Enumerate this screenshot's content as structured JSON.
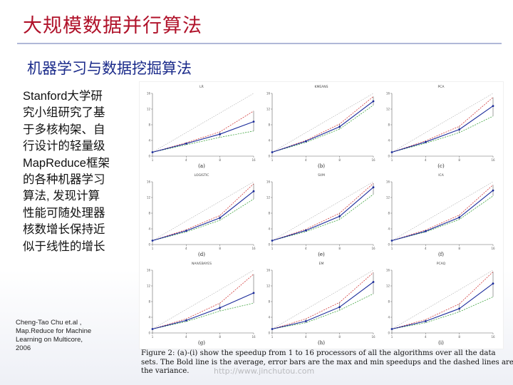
{
  "slide": {
    "title": "大规模数据并行算法",
    "subtitle": "机器学习与数据挖掘算法",
    "body_lines": [
      "Stanford大学研",
      "究小组研究了基",
      "于多核构架、自",
      "行设计的轻量级",
      "MapReduce框架",
      "的各种机器学习",
      "算法, 发现计算",
      "性能可随处理器",
      "核数增长保持近",
      "似于线性的增长"
    ],
    "citation_lines": [
      "Cheng-Tao Chu et.al ,",
      "Map.Reduce for Machine",
      "Learning on Multicore,",
      "2006"
    ],
    "caption_lines": [
      "Figure 2: (a)-(i) show the speedup from 1 to 16 processors of all the algorithms over all the data",
      "sets. The Bold line is the average, error bars are the max and min speedups and the dashed lines are",
      "the variance."
    ],
    "watermark": "http://www.jinchutou.com"
  },
  "colors": {
    "title": "#b0122a",
    "subtitle": "#1a2a8a",
    "avg_line": "#1a2a9a",
    "max_line": "#cc2222",
    "min_line": "#2a9a2a",
    "variance_line": "#888888"
  },
  "chart_data": [
    {
      "type": "line",
      "name": "LR",
      "label": "(a)",
      "x": [
        1,
        4,
        8,
        16
      ],
      "series": [
        {
          "values": [
            1,
            3.2,
            5.6,
            8.8
          ]
        },
        {
          "values": [
            1,
            3.4,
            6.2,
            11.5
          ]
        },
        {
          "values": [
            1,
            2.9,
            4.8,
            6.4
          ]
        }
      ],
      "ylim": [
        0,
        16
      ]
    },
    {
      "type": "line",
      "name": "KMEANS",
      "label": "(b)",
      "x": [
        1,
        4,
        8,
        16
      ],
      "series": [
        {
          "values": [
            1,
            3.8,
            7.5,
            14.0
          ]
        },
        {
          "values": [
            1,
            4.0,
            8.2,
            15.2
          ]
        },
        {
          "values": [
            1,
            3.5,
            6.9,
            13.0
          ]
        }
      ],
      "ylim": [
        0,
        16
      ]
    },
    {
      "type": "line",
      "name": "PCA",
      "label": "(c)",
      "x": [
        1,
        4,
        8,
        16
      ],
      "series": [
        {
          "values": [
            1,
            3.6,
            6.8,
            12.8
          ]
        },
        {
          "values": [
            1,
            3.9,
            7.6,
            15.0
          ]
        },
        {
          "values": [
            1,
            3.3,
            6.0,
            10.2
          ]
        }
      ],
      "ylim": [
        0,
        16
      ]
    },
    {
      "type": "line",
      "name": "LOGISTIC",
      "label": "(d)",
      "x": [
        1,
        4,
        8,
        16
      ],
      "series": [
        {
          "values": [
            1,
            3.5,
            6.8,
            13.6
          ]
        },
        {
          "values": [
            1,
            3.8,
            7.4,
            15.5
          ]
        },
        {
          "values": [
            1,
            3.2,
            6.2,
            11.6
          ]
        }
      ],
      "ylim": [
        0,
        16
      ]
    },
    {
      "type": "line",
      "name": "SVM",
      "label": "(e)",
      "x": [
        1,
        4,
        8,
        16
      ],
      "series": [
        {
          "values": [
            1,
            3.6,
            7.2,
            14.6
          ]
        },
        {
          "values": [
            1,
            3.9,
            8.0,
            15.6
          ]
        },
        {
          "values": [
            1,
            3.3,
            6.4,
            12.8
          ]
        }
      ],
      "ylim": [
        0,
        16
      ]
    },
    {
      "type": "line",
      "name": "ICA",
      "label": "(f)",
      "x": [
        1,
        4,
        8,
        16
      ],
      "series": [
        {
          "values": [
            1,
            3.4,
            6.9,
            13.8
          ]
        },
        {
          "values": [
            1,
            3.7,
            7.5,
            15.2
          ]
        },
        {
          "values": [
            1,
            3.2,
            6.4,
            12.4
          ]
        }
      ],
      "ylim": [
        0,
        16
      ]
    },
    {
      "type": "line",
      "name": "NAIVEBAYES",
      "label": "(g)",
      "x": [
        1,
        4,
        8,
        16
      ],
      "series": [
        {
          "values": [
            1,
            3.2,
            6.4,
            10.2
          ]
        },
        {
          "values": [
            1,
            3.6,
            7.6,
            15.0
          ]
        },
        {
          "values": [
            1,
            2.9,
            5.6,
            7.6
          ]
        }
      ],
      "ylim": [
        0,
        16
      ]
    },
    {
      "type": "line",
      "name": "EM",
      "label": "(h)",
      "x": [
        1,
        4,
        8,
        16
      ],
      "series": [
        {
          "values": [
            1,
            3.0,
            6.6,
            13.0
          ]
        },
        {
          "values": [
            1,
            3.6,
            7.8,
            15.4
          ]
        },
        {
          "values": [
            1,
            2.6,
            5.8,
            10.0
          ]
        }
      ],
      "ylim": [
        0,
        16
      ]
    },
    {
      "type": "line",
      "name": "PCAQ",
      "label": "(i)",
      "x": [
        1,
        4,
        8,
        16
      ],
      "series": [
        {
          "values": [
            1,
            3.0,
            6.2,
            12.6
          ]
        },
        {
          "values": [
            1,
            3.4,
            7.4,
            15.6
          ]
        },
        {
          "values": [
            1,
            2.6,
            5.4,
            9.2
          ]
        }
      ],
      "ylim": [
        0,
        16
      ]
    }
  ]
}
